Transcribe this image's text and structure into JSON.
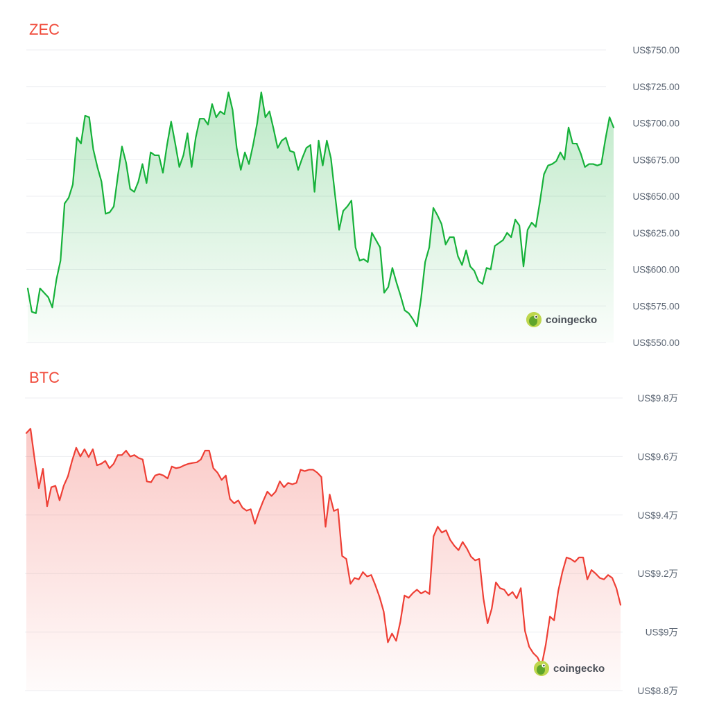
{
  "chart_data": [
    {
      "type": "area",
      "title": "ZEC",
      "title_color": "#f04a3a",
      "line_color": "#16b13a",
      "fill_color": "#16b13a",
      "ylim": [
        550,
        750
      ],
      "yticks": [
        550,
        575,
        600,
        625,
        650,
        675,
        700,
        725,
        750
      ],
      "ytick_labels": [
        "US$550.00",
        "US$575.00",
        "US$600.00",
        "US$625.00",
        "US$650.00",
        "US$675.00",
        "US$700.00",
        "US$725.00",
        "US$750.00"
      ],
      "grid": true,
      "watermark": "coingecko",
      "series": [
        {
          "values": [
            587,
            571,
            570,
            587,
            584,
            581,
            574,
            593,
            606,
            645,
            649,
            658,
            690,
            686,
            705,
            704,
            682,
            670,
            660,
            638,
            639,
            643,
            664,
            684,
            673,
            655,
            653,
            660,
            672,
            659,
            680,
            678,
            678,
            666,
            685,
            701,
            686,
            670,
            678,
            693,
            670,
            690,
            703,
            703,
            699,
            713,
            704,
            708,
            706,
            721,
            709,
            683,
            668,
            680,
            672,
            685,
            700,
            721,
            704,
            708,
            696,
            683,
            688,
            690,
            681,
            680,
            668,
            676,
            683,
            685,
            653,
            688,
            671,
            688,
            676,
            651,
            627,
            640,
            643,
            647,
            615,
            606,
            607,
            605,
            625,
            620,
            615,
            584,
            588,
            601,
            591,
            582,
            572,
            570,
            566,
            561,
            580,
            605,
            615,
            642,
            637,
            631,
            617,
            622,
            622,
            609,
            603,
            613,
            602,
            599,
            592,
            590,
            601,
            600,
            616,
            618,
            620,
            625,
            622,
            634,
            630,
            602,
            627,
            632,
            629,
            646,
            665,
            671,
            672,
            674,
            680,
            675,
            697,
            686,
            686,
            679,
            670,
            672,
            672,
            671,
            672,
            689,
            704,
            697
          ]
        }
      ]
    },
    {
      "type": "area",
      "title": "BTC",
      "title_color": "#f04a3a",
      "line_color": "#ee3f35",
      "fill_color": "#ee3f35",
      "ylim": [
        88000,
        98000
      ],
      "yticks": [
        88000,
        90000,
        92000,
        94000,
        96000,
        98000
      ],
      "ytick_labels": [
        "US$8.8万",
        "US$9万",
        "US$9.2万",
        "US$9.4万",
        "US$9.6万",
        "US$9.8万"
      ],
      "grid": true,
      "watermark": "coingecko",
      "series": [
        {
          "values": [
            96800,
            96950,
            95900,
            94920,
            95580,
            94300,
            94950,
            95000,
            94500,
            95000,
            95320,
            95850,
            96300,
            96000,
            96250,
            95980,
            96250,
            95700,
            95750,
            95850,
            95600,
            95750,
            96050,
            96050,
            96200,
            96000,
            96050,
            95950,
            95900,
            95150,
            95120,
            95350,
            95400,
            95350,
            95250,
            95660,
            95600,
            95630,
            95700,
            95750,
            95780,
            95800,
            95900,
            96200,
            96200,
            95600,
            95450,
            95200,
            95350,
            94550,
            94400,
            94500,
            94250,
            94150,
            94200,
            93700,
            94120,
            94480,
            94800,
            94650,
            94800,
            95150,
            94950,
            95100,
            95050,
            95100,
            95550,
            95500,
            95550,
            95550,
            95450,
            95300,
            93600,
            94700,
            94140,
            94200,
            92600,
            92500,
            91650,
            91850,
            91800,
            92050,
            91900,
            91950,
            91600,
            91200,
            90700,
            89650,
            89950,
            89700,
            90350,
            91250,
            91170,
            91330,
            91450,
            91320,
            91400,
            91300,
            93270,
            93600,
            93400,
            93480,
            93150,
            92950,
            92800,
            93080,
            92860,
            92580,
            92450,
            92500,
            91150,
            90300,
            90800,
            91700,
            91500,
            91450,
            91250,
            91370,
            91150,
            91500,
            90040,
            89500,
            89280,
            89140,
            88850,
            89570,
            90530,
            90400,
            91400,
            92050,
            92550,
            92500,
            92400,
            92550,
            92550,
            91800,
            92120,
            92000,
            91850,
            91800,
            91950,
            91850,
            91500,
            90930
          ]
        }
      ]
    }
  ]
}
